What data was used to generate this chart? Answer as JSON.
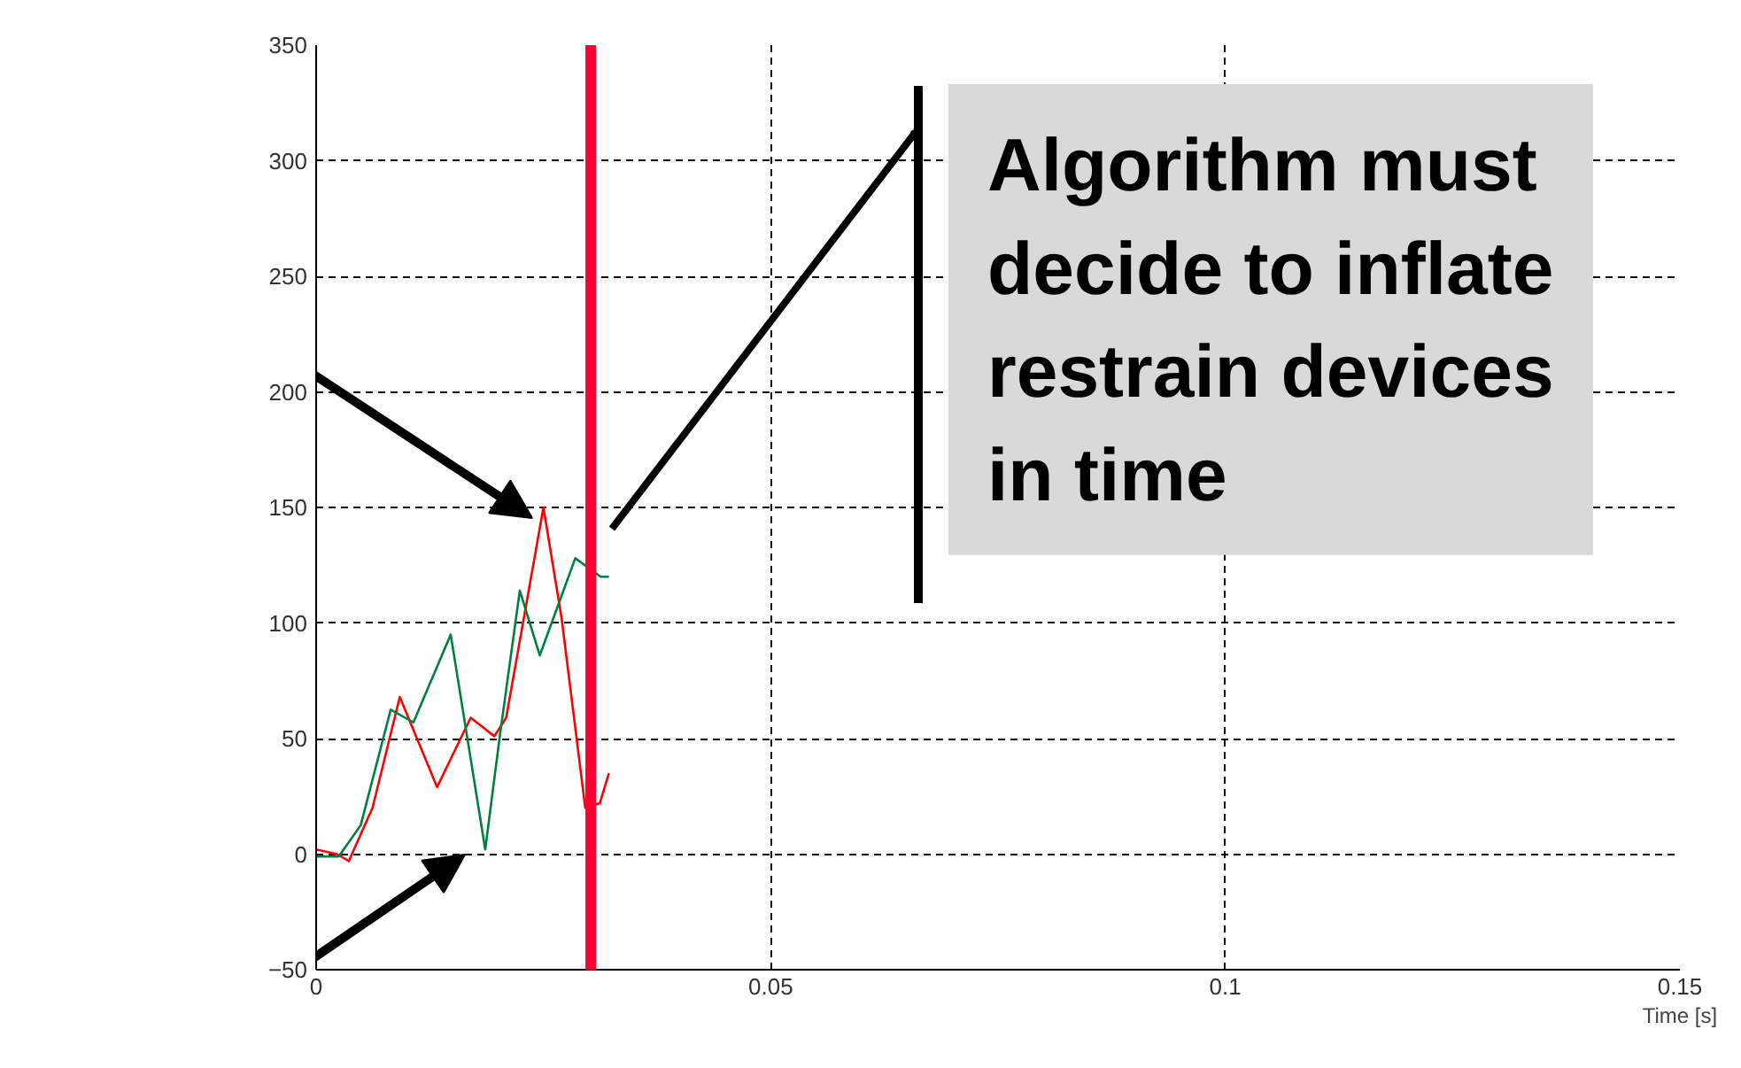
{
  "chart_data": {
    "type": "line",
    "xlabel": "Time [s]",
    "xlim": [
      0,
      0.15
    ],
    "xticks": [
      0,
      0.05,
      0.1,
      0.15
    ],
    "ylim": [
      -50,
      350
    ],
    "yticks": [
      -50,
      0,
      50,
      100,
      150,
      200,
      250,
      300,
      350
    ],
    "grid": true,
    "line_style": "solid",
    "series": [
      {
        "color": "#ff0000",
        "x": [
          0,
          0.0023,
          0.0036,
          0.0062,
          0.0092,
          0.0133,
          0.017,
          0.0196,
          0.0209,
          0.025,
          0.027,
          0.0296,
          0.0312,
          0.0322
        ],
        "values": [
          2,
          0,
          -3,
          20,
          68,
          29,
          59,
          51,
          59,
          150,
          102,
          20,
          22,
          35
        ]
      },
      {
        "color": "#008040",
        "x": [
          0,
          0.0025,
          0.0049,
          0.0082,
          0.0107,
          0.0148,
          0.0186,
          0.0202,
          0.0224,
          0.0246,
          0.0285,
          0.0313,
          0.0322
        ],
        "values": [
          -1,
          -1,
          12.5,
          62.5,
          57,
          95,
          2,
          51,
          114,
          86,
          128,
          120,
          120
        ]
      }
    ],
    "ref_lines": [
      {
        "axis": "x",
        "value": 0.0302,
        "color": "#ff0033"
      }
    ],
    "annotations": [
      "Algorithm must decide to inflate restrain devices in time"
    ]
  }
}
